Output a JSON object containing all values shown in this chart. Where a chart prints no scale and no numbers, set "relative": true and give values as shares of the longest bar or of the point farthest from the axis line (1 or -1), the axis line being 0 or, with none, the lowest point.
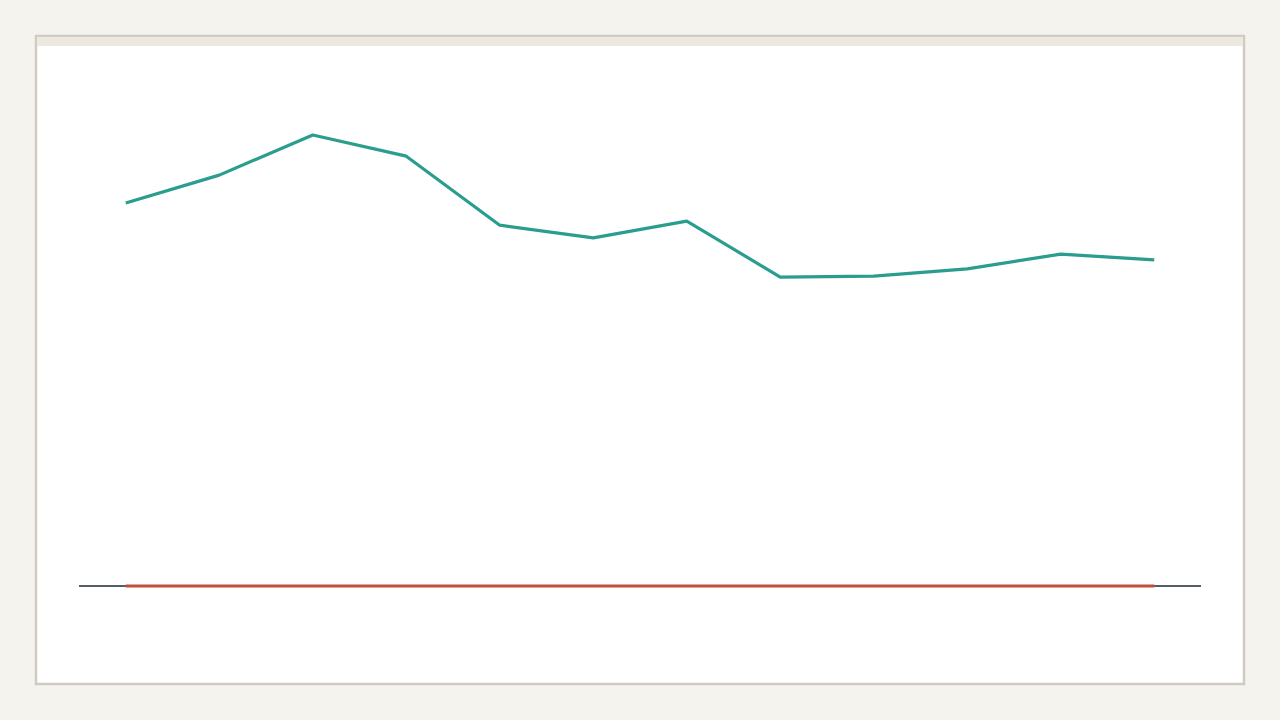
{
  "chart_data": {
    "type": "line",
    "relative": true,
    "categories": [
      null,
      null,
      null,
      null,
      null,
      null,
      null,
      null,
      null,
      null,
      null,
      null
    ],
    "series": [
      {
        "color": "#2a9d8f",
        "values": [
          0.849,
          0.911,
          1,
          0.953,
          0.8,
          0.772,
          0.809,
          0.685,
          0.687,
          0.703,
          0.736,
          0.723
        ]
      },
      {
        "color": "#c0503a",
        "values": [
          0,
          0,
          0,
          0,
          0,
          0,
          0,
          0,
          0,
          0,
          0,
          0
        ]
      }
    ]
  }
}
